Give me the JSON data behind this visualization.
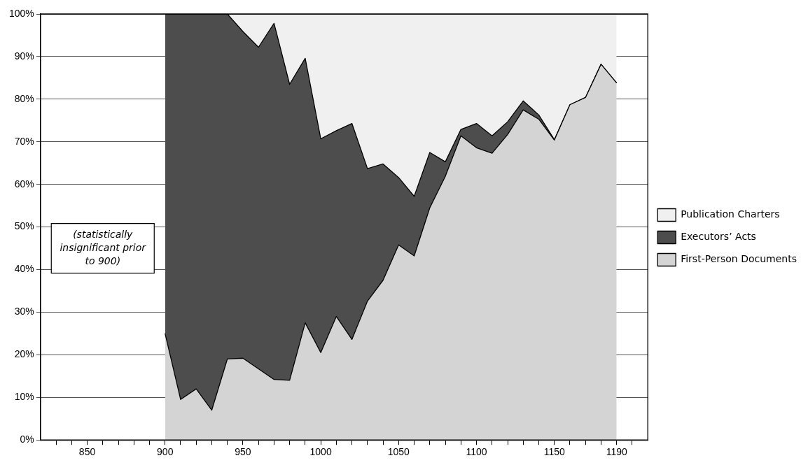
{
  "chart_data": {
    "type": "area",
    "stacked": true,
    "x": [
      900,
      910,
      920,
      930,
      940,
      950,
      960,
      970,
      980,
      990,
      1000,
      1010,
      1020,
      1030,
      1040,
      1050,
      1060,
      1070,
      1080,
      1090,
      1100,
      1110,
      1120,
      1130,
      1140,
      1150,
      1160,
      1170,
      1180,
      1190
    ],
    "series": [
      {
        "name": "First-Person Documents",
        "color": "#d4d4d4",
        "values": [
          25,
          9.5,
          12,
          7,
          19,
          19.2,
          16.7,
          14.2,
          14,
          27.5,
          20.5,
          29,
          23.6,
          32.6,
          37.5,
          45.8,
          43.2,
          54.5,
          61.9,
          71.4,
          68.6,
          67.3,
          71.7,
          77.5,
          75.3,
          70.4,
          78.7,
          80.4,
          88.2,
          83.8
        ]
      },
      {
        "name": "Executors’ Acts",
        "color": "#4d4d4d",
        "values": [
          75,
          90.5,
          88,
          93,
          81,
          76.7,
          75.5,
          83.6,
          69.5,
          62.1,
          50.2,
          43.6,
          50.7,
          31.1,
          27.3,
          15.8,
          14,
          13,
          3.4,
          1.5,
          5.7,
          4.1,
          3,
          2.1,
          1,
          0.1,
          0,
          0,
          0,
          0
        ]
      },
      {
        "name": "Publication Charters",
        "color": "#f0f0f0",
        "values": [
          0,
          0,
          0,
          0,
          0,
          4.1,
          7.8,
          2.2,
          16.5,
          10.4,
          29.3,
          27.4,
          25.7,
          36.3,
          35.2,
          38.4,
          42.8,
          32.5,
          34.7,
          27.1,
          25.7,
          28.6,
          25.3,
          20.4,
          23.7,
          29.5,
          21.3,
          19.6,
          11.8,
          16.2
        ]
      }
    ],
    "xlim": [
      820,
      1210
    ],
    "xticks": [
      {
        "value": 830,
        "label": null
      },
      {
        "value": 840,
        "label": null
      },
      850,
      {
        "value": 860,
        "label": null
      },
      {
        "value": 870,
        "label": null
      },
      {
        "value": 880,
        "label": null
      },
      {
        "value": 890,
        "label": null
      },
      900,
      {
        "value": 910,
        "label": null
      },
      {
        "value": 920,
        "label": null
      },
      {
        "value": 930,
        "label": null
      },
      {
        "value": 940,
        "label": null
      },
      950,
      {
        "value": 960,
        "label": null
      },
      {
        "value": 970,
        "label": null
      },
      {
        "value": 980,
        "label": null
      },
      {
        "value": 990,
        "label": null
      },
      1000,
      {
        "value": 1010,
        "label": null
      },
      {
        "value": 1020,
        "label": null
      },
      {
        "value": 1030,
        "label": null
      },
      {
        "value": 1040,
        "label": null
      },
      1050,
      {
        "value": 1060,
        "label": null
      },
      {
        "value": 1070,
        "label": null
      },
      {
        "value": 1080,
        "label": null
      },
      {
        "value": 1090,
        "label": null
      },
      1100,
      {
        "value": 1110,
        "label": null
      },
      {
        "value": 1120,
        "label": null
      },
      {
        "value": 1130,
        "label": null
      },
      {
        "value": 1140,
        "label": null
      },
      1150,
      {
        "value": 1160,
        "label": null
      },
      {
        "value": 1170,
        "label": null
      },
      {
        "value": 1180,
        "label": null
      },
      1190,
      {
        "value": 1200,
        "label": null
      }
    ],
    "ylim": [
      0,
      100
    ],
    "yticks": [
      {
        "value": 0,
        "label": "0%"
      },
      {
        "value": 10,
        "label": "10%"
      },
      {
        "value": 20,
        "label": "20%"
      },
      {
        "value": 30,
        "label": "30%"
      },
      {
        "value": 40,
        "label": "40%"
      },
      {
        "value": 50,
        "label": "50%"
      },
      {
        "value": 60,
        "label": "60%"
      },
      {
        "value": 70,
        "label": "70%"
      },
      {
        "value": 80,
        "label": "80%"
      },
      {
        "value": 90,
        "label": "90%"
      },
      {
        "value": 100,
        "label": "100%"
      }
    ],
    "grid": "y",
    "legend": "right",
    "marker": "none",
    "line_style": "solid",
    "annotations": [
      "(statistically insignificant prior to 900)"
    ]
  }
}
